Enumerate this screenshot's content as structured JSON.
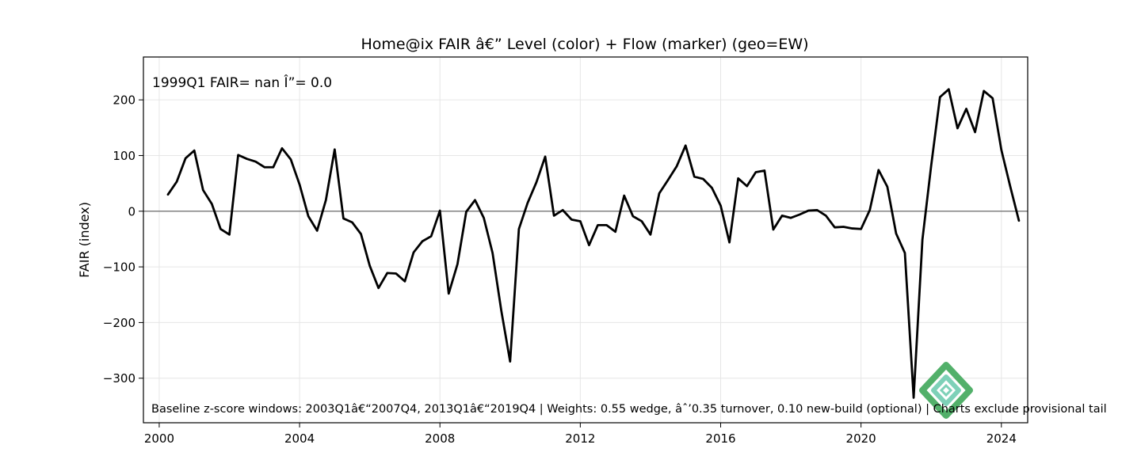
{
  "chart_data": {
    "type": "line",
    "title": "Home@ix FAIR â€” Level (color) + Flow (marker) (geo=EW)",
    "xlabel": "",
    "ylabel": "FAIR (index)",
    "xlim": [
      1999.55,
      2024.75
    ],
    "ylim": [
      -380,
      277
    ],
    "x_ticks": [
      2000,
      2004,
      2008,
      2012,
      2016,
      2020,
      2024
    ],
    "y_ticks": [
      -300,
      -200,
      -100,
      0,
      100,
      200
    ],
    "grid": true,
    "zero_line": true,
    "annotation": "1999Q1  FAIR= nan   Î”= 0.0",
    "footer": "Baseline z-score windows: 2003Q1â€“2007Q4, 2013Q1â€“2019Q4 | Weights: 0.55 wedge, âˆ’0.35 turnover, 0.10 new-build (optional) | Charts exclude provisional tail",
    "series": [
      {
        "color": "#000000",
        "x": [
          2000.25,
          2000.5,
          2000.75,
          2001.0,
          2001.25,
          2001.5,
          2001.75,
          2002.0,
          2002.25,
          2002.5,
          2002.75,
          2003.0,
          2003.25,
          2003.5,
          2003.75,
          2004.0,
          2004.25,
          2004.5,
          2004.75,
          2005.0,
          2005.25,
          2005.5,
          2005.75,
          2006.0,
          2006.25,
          2006.5,
          2006.75,
          2007.0,
          2007.25,
          2007.5,
          2007.75,
          2008.0,
          2008.25,
          2008.5,
          2008.75,
          2009.0,
          2009.25,
          2009.5,
          2009.75,
          2010.0,
          2010.25,
          2010.5,
          2010.75,
          2011.0,
          2011.25,
          2011.5,
          2011.75,
          2012.0,
          2012.25,
          2012.5,
          2012.75,
          2013.0,
          2013.25,
          2013.5,
          2013.75,
          2014.0,
          2014.25,
          2014.5,
          2014.75,
          2015.0,
          2015.25,
          2015.5,
          2015.75,
          2016.0,
          2016.25,
          2016.5,
          2016.75,
          2017.0,
          2017.25,
          2017.5,
          2017.75,
          2018.0,
          2018.25,
          2018.5,
          2018.75,
          2019.0,
          2019.25,
          2019.5,
          2019.75,
          2020.0,
          2020.25,
          2020.5,
          2020.75,
          2021.0,
          2021.25,
          2021.5,
          2021.75,
          2022.0,
          2022.25,
          2022.5,
          2022.75,
          2023.0,
          2023.25,
          2023.5,
          2023.75,
          2024.0,
          2024.25,
          2024.5
        ],
        "values": [
          30,
          53,
          95,
          109,
          38,
          13,
          -32,
          -42,
          101,
          94,
          89,
          79,
          79,
          113,
          93,
          48,
          -9,
          -35,
          20,
          111,
          -13,
          -20,
          -41,
          -98,
          -138,
          -111,
          -112,
          -126,
          -74,
          -54,
          -45,
          1,
          -148,
          -95,
          -1,
          20,
          -12,
          -75,
          -179,
          -270,
          -32,
          15,
          52,
          98,
          -8,
          2,
          -15,
          -18,
          -61,
          -25,
          -25,
          -37,
          28,
          -9,
          -18,
          -42,
          32,
          56,
          81,
          118,
          62,
          58,
          42,
          10,
          -56,
          59,
          45,
          70,
          73,
          -33,
          -8,
          -12,
          -6,
          1,
          2,
          -8,
          -29,
          -28,
          -31,
          -32,
          2,
          74,
          44,
          -40,
          -75,
          -335,
          -51,
          82,
          205,
          219,
          149,
          184,
          142,
          216,
          203,
          110,
          45,
          -17
        ]
      }
    ]
  }
}
